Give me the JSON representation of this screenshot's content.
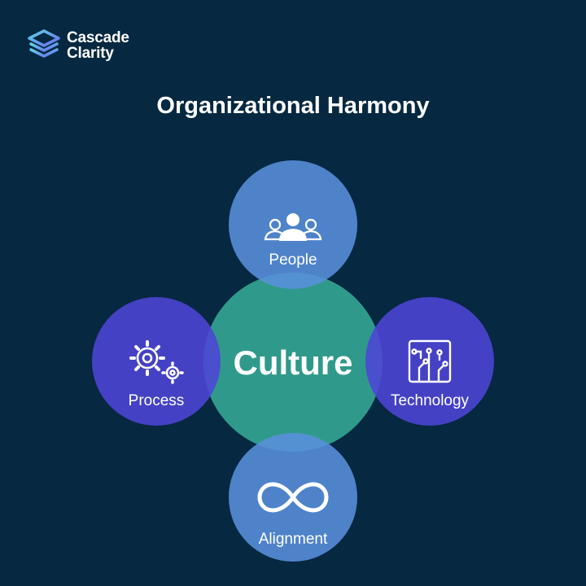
{
  "brand": {
    "line1": "Cascade",
    "line2": "Clarity"
  },
  "title": "Organizational Harmony",
  "center": {
    "label": "Culture"
  },
  "nodes": {
    "people": {
      "label": "People",
      "icon": "people-icon"
    },
    "process": {
      "label": "Process",
      "icon": "gears-icon"
    },
    "technology": {
      "label": "Technology",
      "icon": "circuit-board-icon"
    },
    "alignment": {
      "label": "Alignment",
      "icon": "infinity-icon"
    }
  },
  "colors": {
    "background": "#062841",
    "center": "#2f9a8b",
    "people": "#5a8fdc",
    "alignment": "#5a8fdc",
    "process": "#4e44d6",
    "technology": "#4e44d6"
  }
}
